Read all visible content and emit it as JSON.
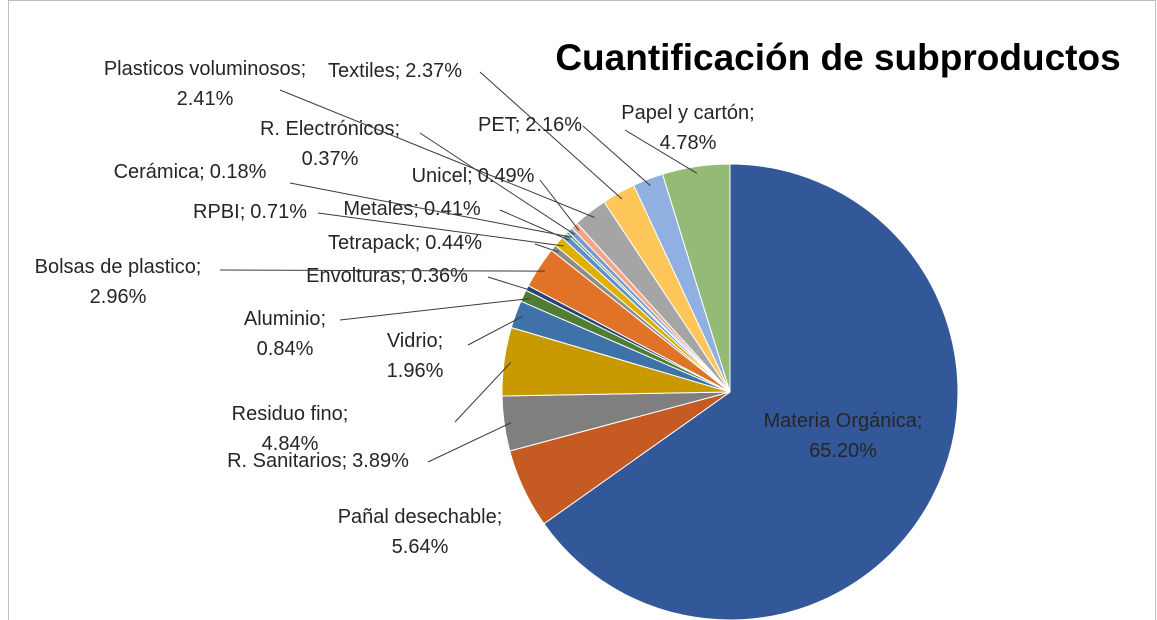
{
  "chart_data": {
    "type": "pie",
    "title": "Cuantificación de subproductos",
    "categories": [
      "Materia Orgánica;",
      "Pañal desechable;",
      "R. Sanitarios;",
      "Residuo fino;",
      "Vidrio;",
      "Aluminio;",
      "Envolturas;",
      "Bolsas de plastico;",
      "Tetrapack;",
      "RPBI;",
      "Metales;",
      "Cerámica;",
      "R. Electrónicos;",
      "Unicel;",
      "Plasticos voluminosos;",
      "Textiles;",
      "PET;",
      "Papel y cartón;"
    ],
    "values": [
      65.2,
      5.64,
      3.89,
      4.84,
      1.96,
      0.84,
      0.36,
      2.96,
      0.44,
      0.71,
      0.41,
      0.18,
      0.37,
      0.49,
      2.41,
      2.37,
      2.16,
      4.78
    ],
    "value_labels": [
      "65.20%",
      "5.64%",
      "3.89%",
      "4.84%",
      "1.96%",
      "0.84%",
      "0.36%",
      "2.96%",
      "0.44%",
      "0.71%",
      "0.41%",
      "0.18%",
      "0.37%",
      "0.49%",
      "2.41%",
      "2.37%",
      "2.16%",
      "4.78%"
    ],
    "colors": [
      "#325899",
      "#c55a22",
      "#7f7f7f",
      "#c99a00",
      "#3e72a8",
      "#4f7d35",
      "#264478",
      "#e07328",
      "#8c8c8c",
      "#e0b000",
      "#5b8fcf",
      "#6fa44a",
      "#7a9ad6",
      "#f4a582",
      "#a5a5a5",
      "#ffc65a",
      "#8fb0e0",
      "#93bb76"
    ]
  }
}
